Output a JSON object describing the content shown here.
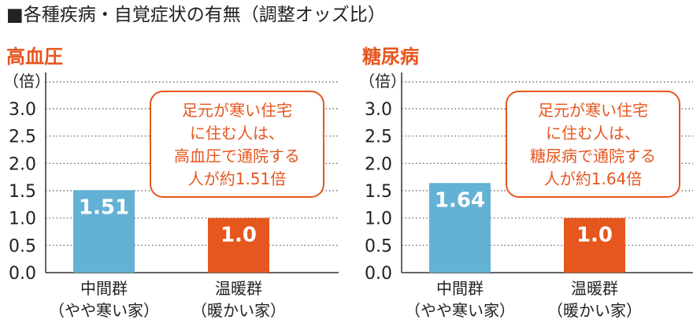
{
  "header": {
    "title": "■各種疾病・自覚症状の有無（調整オッズ比）"
  },
  "colors": {
    "accent": "#e6561f",
    "blue": "#64b1d6",
    "orange": "#e6561f"
  },
  "chart_data": [
    {
      "type": "bar",
      "title": "高血圧",
      "ylabel": "（倍）",
      "ylim": [
        0,
        3.0
      ],
      "yticks": [
        "0.0",
        "0.5",
        "1.0",
        "1.5",
        "2.0",
        "2.5",
        "3.0"
      ],
      "grid": true,
      "categories": [
        [
          "中間群",
          "（やや寒い家）"
        ],
        [
          "温暖群",
          "（暖かい家）"
        ]
      ],
      "values": [
        1.51,
        1.0
      ],
      "data_labels": [
        "1.51",
        "1.0"
      ],
      "bar_colors": [
        "#64b1d6",
        "#e6561f"
      ],
      "annotation": [
        "足元が寒い住宅",
        "に住む人は、",
        "高血圧で通院する",
        "人が約1.51倍"
      ]
    },
    {
      "type": "bar",
      "title": "糖尿病",
      "ylabel": "（倍）",
      "ylim": [
        0,
        3.0
      ],
      "yticks": [
        "0.0",
        "0.5",
        "1.0",
        "1.5",
        "2.0",
        "2.5",
        "3.0"
      ],
      "grid": true,
      "categories": [
        [
          "中間群",
          "（やや寒い家）"
        ],
        [
          "温暖群",
          "（暖かい家）"
        ]
      ],
      "values": [
        1.64,
        1.0
      ],
      "data_labels": [
        "1.64",
        "1.0"
      ],
      "bar_colors": [
        "#64b1d6",
        "#e6561f"
      ],
      "annotation": [
        "足元が寒い住宅",
        "に住む人は、",
        "糖尿病で通院する",
        "人が約1.64倍"
      ]
    }
  ]
}
